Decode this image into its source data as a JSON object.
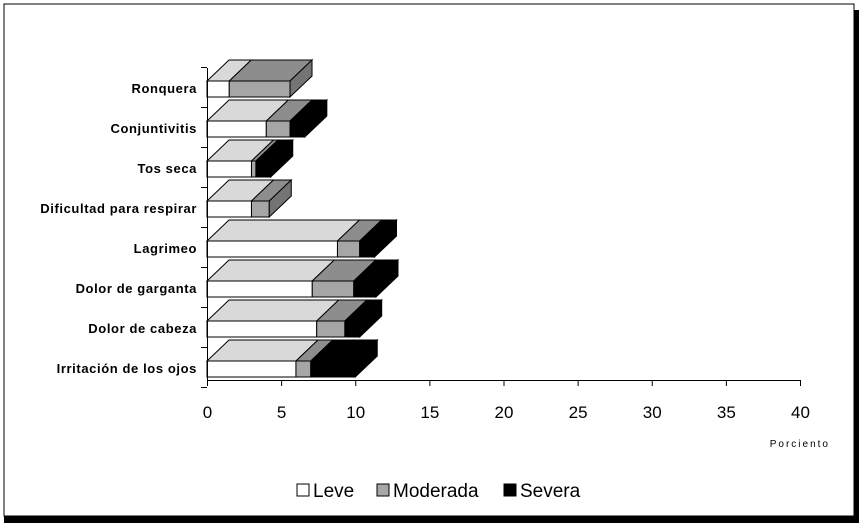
{
  "chart_data": {
    "type": "bar",
    "orientation": "horizontal",
    "stacked": true,
    "style": "3d",
    "categories": [
      "Ronquera",
      "Conjuntivitis",
      "Tos seca",
      "Dificultad para respirar",
      "Lagrimeo",
      "Dolor de garganta",
      "Dolor de cabeza",
      "Irritación de los ojos"
    ],
    "series": [
      {
        "name": "Leve",
        "color": "#ffffff",
        "values": [
          1.5,
          4.0,
          3.0,
          3.0,
          8.8,
          7.1,
          7.4,
          6.0
        ]
      },
      {
        "name": "Moderada",
        "color": "#a6a6a6",
        "values": [
          4.1,
          1.6,
          0.3,
          1.2,
          1.5,
          2.8,
          1.9,
          1.0
        ]
      },
      {
        "name": "Severa",
        "color": "#000000",
        "values": [
          0.0,
          1.0,
          1.0,
          0.0,
          1.0,
          1.5,
          1.0,
          3.0
        ]
      }
    ],
    "xlabel": "Porciento",
    "ylabel": "",
    "xlim": [
      0,
      40
    ],
    "xticks": [
      "0",
      "5",
      "10",
      "15",
      "20",
      "25",
      "30",
      "35",
      "40"
    ],
    "grid": false,
    "legend_position": "bottom"
  }
}
